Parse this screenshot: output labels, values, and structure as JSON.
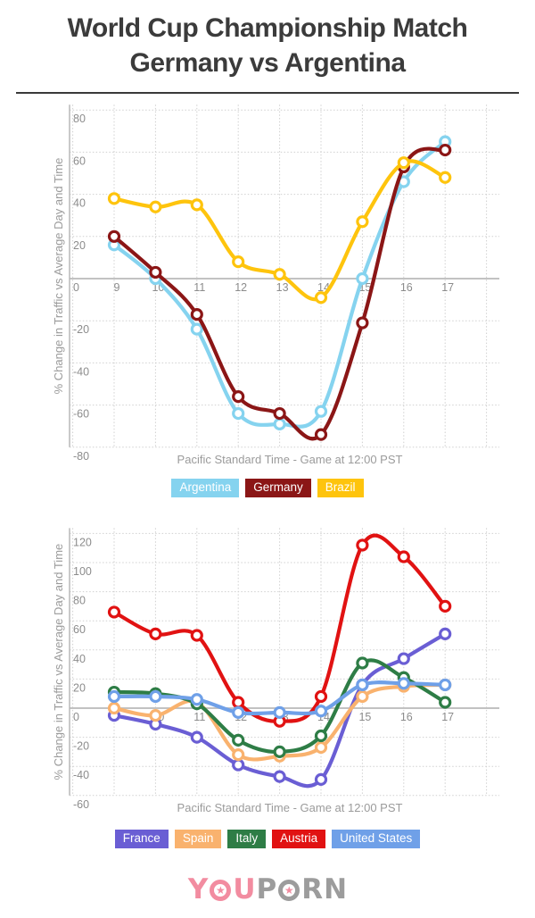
{
  "title": {
    "line1": "World Cup Championship Match",
    "line2": "Germany vs Argentina"
  },
  "chart_data": [
    {
      "type": "line",
      "x": [
        9,
        10,
        11,
        12,
        13,
        14,
        15,
        16,
        17
      ],
      "xlabel": "Pacific Standard Time - Game at 12:00 PST",
      "ylabel": "% Change in Traffic vs Average Day and Time",
      "ylim": [
        -80,
        80
      ],
      "ytick_step": 20,
      "grid": true,
      "legend_position": "bottom",
      "series": [
        {
          "name": "Argentina",
          "color": "#85D3EF",
          "values": [
            16,
            0,
            -24,
            -64,
            -69,
            -63,
            0,
            46,
            65
          ]
        },
        {
          "name": "Germany",
          "color": "#8B1616",
          "values": [
            20,
            3,
            -17,
            -56,
            -64,
            -74,
            -21,
            53,
            61
          ]
        },
        {
          "name": "Brazil",
          "color": "#FEC40D",
          "values": [
            38,
            34,
            35,
            8,
            2,
            -9,
            27,
            55,
            48
          ]
        }
      ]
    },
    {
      "type": "line",
      "x": [
        9,
        10,
        11,
        12,
        13,
        14,
        15,
        16,
        17
      ],
      "xlabel": "Pacific Standard Time - Game at 12:00 PST",
      "ylabel": "% Change in Traffic vs Average Day and Time",
      "ylim": [
        -60,
        120
      ],
      "ytick_step": 20,
      "grid": true,
      "legend_position": "bottom",
      "series": [
        {
          "name": "France",
          "color": "#6A5ED4",
          "values": [
            -5,
            -11,
            -20,
            -39,
            -47,
            -49,
            16,
            34,
            51
          ]
        },
        {
          "name": "Spain",
          "color": "#F9B26E",
          "values": [
            0,
            -5,
            4,
            -32,
            -33,
            -27,
            8,
            15,
            16
          ]
        },
        {
          "name": "Italy",
          "color": "#2E7D46",
          "values": [
            11,
            10,
            3,
            -22,
            -30,
            -19,
            31,
            21,
            4
          ]
        },
        {
          "name": "Austria",
          "color": "#E11212",
          "values": [
            66,
            51,
            50,
            4,
            -9,
            8,
            112,
            104,
            70
          ]
        },
        {
          "name": "United States",
          "color": "#6FA0E8",
          "values": [
            8,
            8,
            6,
            -3,
            -3,
            -2,
            16,
            17,
            16
          ]
        }
      ]
    }
  ],
  "logo": {
    "part1": "you",
    "part2": "porn",
    "pink": "#F28CA0",
    "gray": "#9C9C9C",
    "star": "★"
  }
}
